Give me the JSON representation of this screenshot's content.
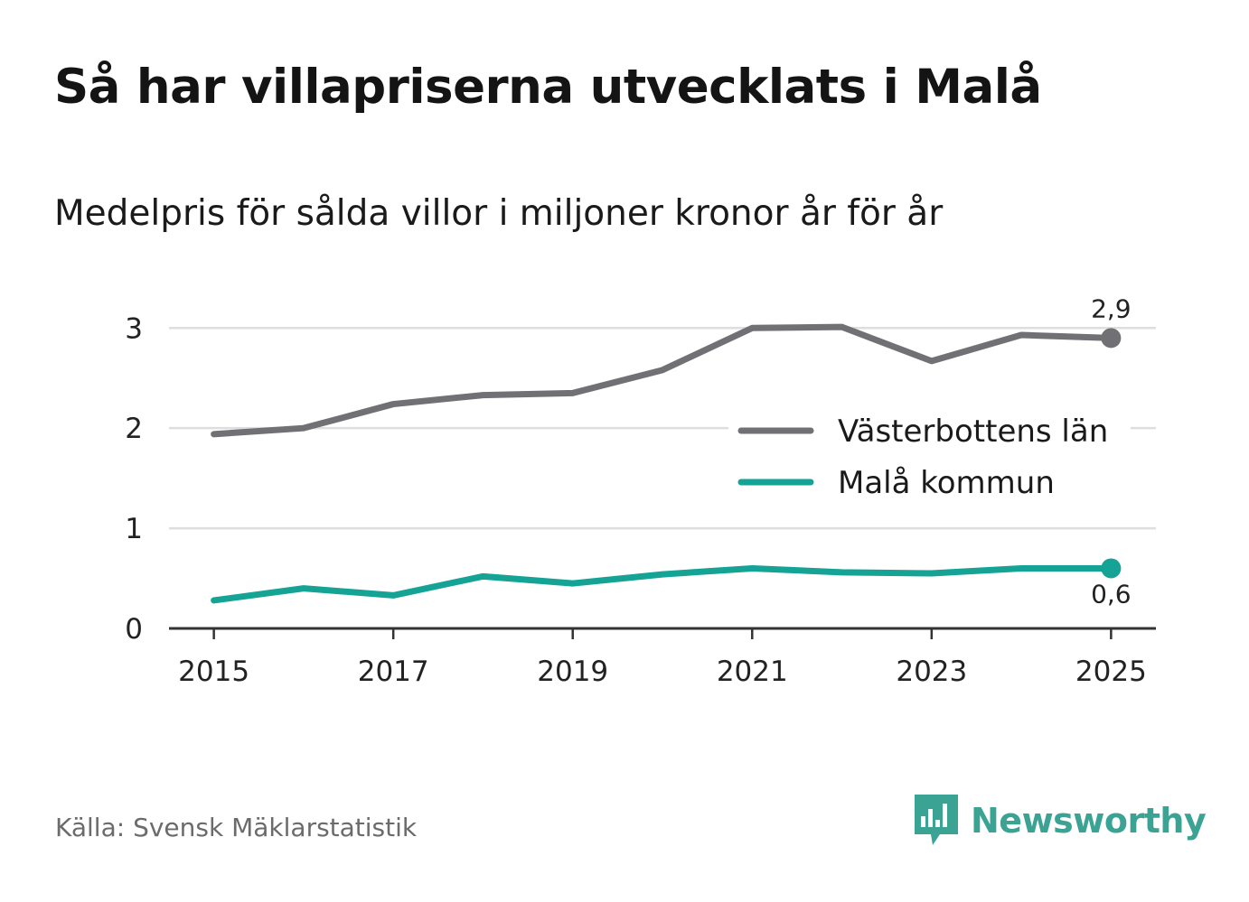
{
  "title": "Så har villapriserna utvecklats i Malå",
  "subtitle": "Medelpris för sålda villor i miljoner kronor år för år",
  "source": "Källa: Svensk Mäklarstatistik",
  "brand": {
    "name": "Newsworthy",
    "icon": "newsworthy-logo-icon",
    "color": "#3aa394"
  },
  "chart_data": {
    "type": "line",
    "title": "Så har villapriserna utvecklats i Malå",
    "subtitle": "Medelpris för sålda villor i miljoner kronor år för år",
    "xlabel": "",
    "ylabel": "",
    "x": [
      2015,
      2016,
      2017,
      2018,
      2019,
      2020,
      2021,
      2022,
      2023,
      2024,
      2025
    ],
    "xlim": [
      2014.5,
      2025.5
    ],
    "ylim": [
      0,
      3.3
    ],
    "x_ticks": [
      "2015",
      "2017",
      "2019",
      "2021",
      "2023",
      "2025"
    ],
    "y_ticks": [
      "0",
      "1",
      "2",
      "3"
    ],
    "grid": true,
    "legend_position": "right-middle",
    "series": [
      {
        "name": "Västerbottens län",
        "color": "#717075",
        "values": [
          1.94,
          2.0,
          2.24,
          2.33,
          2.35,
          2.58,
          3.0,
          3.01,
          2.67,
          2.93,
          2.9
        ],
        "end_label": "2,9"
      },
      {
        "name": "Malå kommun",
        "color": "#15a396",
        "values": [
          0.28,
          0.4,
          0.33,
          0.52,
          0.45,
          0.54,
          0.6,
          0.56,
          0.55,
          0.6,
          0.6
        ],
        "end_label": "0,6"
      }
    ]
  }
}
